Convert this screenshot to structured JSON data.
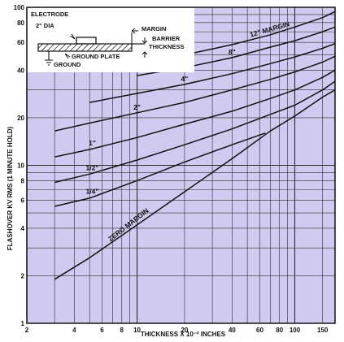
{
  "chart_data": {
    "type": "line",
    "title": "",
    "xlabel": "THICKNESS X 10⁻² INCHES",
    "ylabel": "FLASHOVER KV RMS (1 MINUTE HOLD)",
    "xscale": "log",
    "yscale": "log",
    "xlim": [
      2,
      180
    ],
    "ylim": [
      1,
      100
    ],
    "grid": true,
    "background_color": "#cfcaf0",
    "line_color": "#111111",
    "x_tick_labels": [
      "2",
      "4",
      "6",
      "8",
      "10",
      "20",
      "40",
      "60",
      "80",
      "100",
      "150"
    ],
    "x_tick_values": [
      2,
      4,
      6,
      8,
      10,
      20,
      40,
      60,
      80,
      100,
      150
    ],
    "y_tick_labels": [
      "1",
      "2",
      "4",
      "6",
      "8",
      "10",
      "20",
      "40",
      "60",
      "80",
      "100"
    ],
    "y_tick_values": [
      1,
      2,
      4,
      6,
      8,
      10,
      20,
      40,
      60,
      80,
      100
    ],
    "series": [
      {
        "name": "ZERO MARGIN",
        "x": [
          3,
          5,
          10,
          20,
          40,
          70,
          100,
          150,
          180
        ],
        "y": [
          1.9,
          2.6,
          4.2,
          6.8,
          11,
          16.5,
          20.5,
          27,
          30
        ]
      },
      {
        "name": "1/4\"",
        "x": [
          3,
          5,
          10,
          20,
          40,
          65
        ],
        "y": [
          5.5,
          6.2,
          8.0,
          10.5,
          13.5,
          16
        ]
      },
      {
        "name": "1/2\"",
        "x": [
          3,
          5,
          10,
          20,
          40,
          70,
          100,
          150,
          180
        ],
        "y": [
          7.8,
          8.8,
          10.8,
          13.5,
          17,
          21,
          24,
          30,
          34
        ]
      },
      {
        "name": "1\"",
        "x": [
          3,
          5,
          10,
          20,
          40,
          70,
          100,
          150,
          180
        ],
        "y": [
          11.3,
          12.6,
          15,
          18.2,
          22,
          26.5,
          30,
          36,
          40
        ]
      },
      {
        "name": "2\"",
        "x": [
          3,
          5,
          10,
          20,
          40,
          70,
          100,
          150,
          180
        ],
        "y": [
          16.5,
          18.5,
          21.5,
          25,
          30,
          35,
          39,
          45,
          49
        ]
      },
      {
        "name": "4\"",
        "x": [
          5,
          10,
          20,
          40,
          70,
          100,
          150,
          180
        ],
        "y": [
          25,
          28.5,
          32.5,
          38,
          44,
          48.5,
          55,
          59
        ]
      },
      {
        "name": "8\"",
        "x": [
          10,
          20,
          40,
          70,
          100,
          150,
          180
        ],
        "y": [
          37,
          41.5,
          48,
          56,
          61.5,
          70,
          75
        ]
      },
      {
        "name": "12\" MARGIN",
        "x": [
          20,
          40,
          70,
          100,
          150,
          180
        ],
        "y": [
          50,
          58,
          67,
          75,
          86,
          94
        ]
      }
    ],
    "curve_labels": [
      "ZERO MARGIN",
      "1/4\"",
      "1/2\"",
      "1\"",
      "2\"",
      "4\"",
      "8\"",
      "12\" MARGIN"
    ],
    "inset": {
      "labels": {
        "electrode": "ELECTRODE",
        "dia": "2\" DIA",
        "margin": "MARGIN",
        "barrier": "BARRIER",
        "thickness": "THICKNESS",
        "ground_plate": "GROUND PLATE",
        "ground": "GROUND"
      }
    }
  }
}
